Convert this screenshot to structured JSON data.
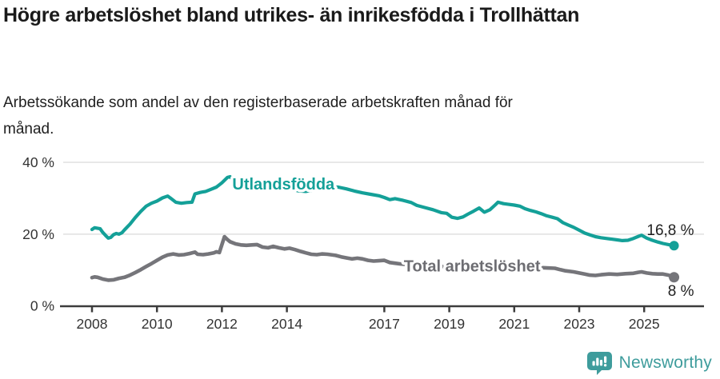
{
  "header": {
    "title": "Högre arbetslöshet bland utrikes- än inrikesfödda i Trollhättan",
    "subtitle": "Arbetssökande som andel av den registerbaserade arbetskraften månad för månad."
  },
  "footer": {
    "brand": "Newsworthy",
    "logo_color": "#3e9c9c"
  },
  "chart_data": {
    "type": "line",
    "unit": "%",
    "grid": "horizontal-only",
    "legend_position": "inline-labels-on-lines",
    "ylim": [
      0,
      42
    ],
    "x_range": [
      2008,
      2025.92
    ],
    "y_ticks": [
      {
        "value": 0,
        "label": "0 %"
      },
      {
        "value": 20,
        "label": "20 %"
      },
      {
        "value": 40,
        "label": "40 %"
      }
    ],
    "x_ticks": [
      {
        "year": 2008,
        "label": "2008"
      },
      {
        "year": 2010,
        "label": "2010"
      },
      {
        "year": 2012,
        "label": "2012"
      },
      {
        "year": 2014,
        "label": "2014"
      },
      {
        "year": 2017,
        "label": "2017"
      },
      {
        "year": 2019,
        "label": "2019"
      },
      {
        "year": 2021,
        "label": "2021"
      },
      {
        "year": 2023,
        "label": "2023"
      },
      {
        "year": 2025,
        "label": "2025"
      }
    ],
    "colors": {
      "axis": "#3c3c3c",
      "grid": "#e1e1e1",
      "tick_text": "#333333",
      "end_label_text": "#1f1f1f"
    },
    "series": [
      {
        "name": "Utlandsfödda",
        "color": "#14a098",
        "line_width": 4.2,
        "end_label": "16,8 %",
        "end_value": 16.8,
        "label_anchor": {
          "t": 2012.32,
          "v": 32.4
        },
        "points": [
          [
            2008.0,
            21.3
          ],
          [
            2008.08,
            21.8
          ],
          [
            2008.25,
            21.5
          ],
          [
            2008.33,
            20.5
          ],
          [
            2008.42,
            19.6
          ],
          [
            2008.5,
            18.9
          ],
          [
            2008.58,
            19.1
          ],
          [
            2008.67,
            19.9
          ],
          [
            2008.75,
            20.2
          ],
          [
            2008.83,
            20.0
          ],
          [
            2008.92,
            20.4
          ],
          [
            2009.0,
            21.2
          ],
          [
            2009.17,
            22.8
          ],
          [
            2009.33,
            24.6
          ],
          [
            2009.5,
            26.3
          ],
          [
            2009.67,
            27.8
          ],
          [
            2009.83,
            28.6
          ],
          [
            2010.0,
            29.2
          ],
          [
            2010.17,
            30.1
          ],
          [
            2010.33,
            30.6
          ],
          [
            2010.42,
            30.0
          ],
          [
            2010.58,
            28.9
          ],
          [
            2010.75,
            28.6
          ],
          [
            2010.92,
            28.8
          ],
          [
            2011.08,
            28.9
          ],
          [
            2011.17,
            31.2
          ],
          [
            2011.33,
            31.6
          ],
          [
            2011.5,
            31.9
          ],
          [
            2011.67,
            32.5
          ],
          [
            2011.83,
            33.1
          ],
          [
            2012.0,
            34.3
          ],
          [
            2012.17,
            35.8
          ],
          [
            2012.25,
            36.0
          ],
          [
            2012.33,
            35.3
          ],
          [
            2012.58,
            34.9
          ],
          [
            2012.83,
            34.4
          ],
          [
            2013.08,
            34.1
          ],
          [
            2013.33,
            33.7
          ],
          [
            2013.58,
            33.4
          ],
          [
            2013.83,
            33.1
          ],
          [
            2014.08,
            32.7
          ],
          [
            2014.33,
            32.1
          ],
          [
            2014.58,
            31.9
          ],
          [
            2014.83,
            32.3
          ],
          [
            2015.08,
            32.7
          ],
          [
            2015.33,
            33.0
          ],
          [
            2015.58,
            33.1
          ],
          [
            2015.83,
            32.6
          ],
          [
            2016.08,
            32.0
          ],
          [
            2016.33,
            31.5
          ],
          [
            2016.58,
            31.1
          ],
          [
            2016.83,
            30.7
          ],
          [
            2017.0,
            30.2
          ],
          [
            2017.17,
            29.6
          ],
          [
            2017.33,
            29.9
          ],
          [
            2017.58,
            29.4
          ],
          [
            2017.83,
            28.8
          ],
          [
            2018.0,
            28.0
          ],
          [
            2018.25,
            27.4
          ],
          [
            2018.5,
            26.8
          ],
          [
            2018.75,
            26.0
          ],
          [
            2018.92,
            25.8
          ],
          [
            2019.08,
            24.7
          ],
          [
            2019.25,
            24.4
          ],
          [
            2019.42,
            24.8
          ],
          [
            2019.58,
            25.6
          ],
          [
            2019.75,
            26.4
          ],
          [
            2019.92,
            27.3
          ],
          [
            2020.08,
            26.1
          ],
          [
            2020.25,
            26.8
          ],
          [
            2020.42,
            28.2
          ],
          [
            2020.5,
            28.9
          ],
          [
            2020.67,
            28.5
          ],
          [
            2020.83,
            28.3
          ],
          [
            2021.0,
            28.1
          ],
          [
            2021.17,
            27.8
          ],
          [
            2021.33,
            27.1
          ],
          [
            2021.5,
            26.6
          ],
          [
            2021.67,
            26.2
          ],
          [
            2021.83,
            25.7
          ],
          [
            2022.0,
            25.1
          ],
          [
            2022.17,
            24.7
          ],
          [
            2022.33,
            24.3
          ],
          [
            2022.5,
            23.2
          ],
          [
            2022.67,
            22.5
          ],
          [
            2022.83,
            21.9
          ],
          [
            2023.0,
            21.1
          ],
          [
            2023.17,
            20.3
          ],
          [
            2023.33,
            19.8
          ],
          [
            2023.5,
            19.3
          ],
          [
            2023.67,
            19.0
          ],
          [
            2023.83,
            18.8
          ],
          [
            2024.0,
            18.6
          ],
          [
            2024.17,
            18.4
          ],
          [
            2024.33,
            18.2
          ],
          [
            2024.5,
            18.3
          ],
          [
            2024.67,
            18.8
          ],
          [
            2024.83,
            19.4
          ],
          [
            2024.92,
            19.7
          ],
          [
            2025.08,
            18.9
          ],
          [
            2025.25,
            18.3
          ],
          [
            2025.42,
            17.8
          ],
          [
            2025.58,
            17.4
          ],
          [
            2025.75,
            17.1
          ],
          [
            2025.92,
            16.8
          ]
        ]
      },
      {
        "name": "Total arbetslöshet",
        "color": "#75757a",
        "label_color": "#6d6d72",
        "line_width": 4.6,
        "end_label": "8 %",
        "end_value": 8.0,
        "label_anchor": {
          "t": 2017.6,
          "v": 9.6
        },
        "points": [
          [
            2008.0,
            7.9
          ],
          [
            2008.08,
            8.1
          ],
          [
            2008.17,
            8.0
          ],
          [
            2008.33,
            7.5
          ],
          [
            2008.5,
            7.2
          ],
          [
            2008.67,
            7.3
          ],
          [
            2008.83,
            7.7
          ],
          [
            2009.0,
            8.0
          ],
          [
            2009.17,
            8.6
          ],
          [
            2009.33,
            9.3
          ],
          [
            2009.5,
            10.1
          ],
          [
            2009.67,
            11.0
          ],
          [
            2009.83,
            11.8
          ],
          [
            2010.0,
            12.7
          ],
          [
            2010.17,
            13.6
          ],
          [
            2010.33,
            14.2
          ],
          [
            2010.5,
            14.5
          ],
          [
            2010.67,
            14.2
          ],
          [
            2010.83,
            14.3
          ],
          [
            2011.0,
            14.6
          ],
          [
            2011.17,
            15.0
          ],
          [
            2011.25,
            14.4
          ],
          [
            2011.42,
            14.3
          ],
          [
            2011.58,
            14.5
          ],
          [
            2011.75,
            14.8
          ],
          [
            2011.83,
            15.1
          ],
          [
            2011.92,
            14.9
          ],
          [
            2012.08,
            19.3
          ],
          [
            2012.17,
            18.5
          ],
          [
            2012.25,
            17.9
          ],
          [
            2012.42,
            17.3
          ],
          [
            2012.58,
            17.0
          ],
          [
            2012.75,
            16.9
          ],
          [
            2012.92,
            17.0
          ],
          [
            2013.08,
            17.1
          ],
          [
            2013.25,
            16.4
          ],
          [
            2013.42,
            16.2
          ],
          [
            2013.58,
            16.6
          ],
          [
            2013.75,
            16.2
          ],
          [
            2013.92,
            15.9
          ],
          [
            2014.08,
            16.1
          ],
          [
            2014.25,
            15.7
          ],
          [
            2014.42,
            15.2
          ],
          [
            2014.58,
            14.8
          ],
          [
            2014.75,
            14.4
          ],
          [
            2014.92,
            14.3
          ],
          [
            2015.08,
            14.5
          ],
          [
            2015.25,
            14.4
          ],
          [
            2015.5,
            14.1
          ],
          [
            2015.67,
            13.7
          ],
          [
            2015.83,
            13.4
          ],
          [
            2016.0,
            13.1
          ],
          [
            2016.17,
            13.3
          ],
          [
            2016.33,
            13.1
          ],
          [
            2016.5,
            12.7
          ],
          [
            2016.67,
            12.5
          ],
          [
            2016.83,
            12.6
          ],
          [
            2017.0,
            12.7
          ],
          [
            2017.17,
            12.1
          ],
          [
            2017.33,
            11.9
          ],
          [
            2017.5,
            11.7
          ],
          [
            2017.75,
            11.5
          ],
          [
            2018.0,
            11.3
          ],
          [
            2018.5,
            11.1
          ],
          [
            2019.0,
            10.9
          ],
          [
            2019.5,
            10.8
          ],
          [
            2020.0,
            11.1
          ],
          [
            2020.5,
            11.3
          ],
          [
            2021.0,
            11.1
          ],
          [
            2021.5,
            10.8
          ],
          [
            2022.0,
            10.6
          ],
          [
            2022.25,
            10.5
          ],
          [
            2022.42,
            10.1
          ],
          [
            2022.58,
            9.8
          ],
          [
            2022.83,
            9.5
          ],
          [
            2023.0,
            9.2
          ],
          [
            2023.17,
            8.9
          ],
          [
            2023.33,
            8.6
          ],
          [
            2023.5,
            8.5
          ],
          [
            2023.67,
            8.7
          ],
          [
            2023.92,
            8.9
          ],
          [
            2024.17,
            8.8
          ],
          [
            2024.42,
            9.0
          ],
          [
            2024.67,
            9.1
          ],
          [
            2024.83,
            9.4
          ],
          [
            2024.92,
            9.5
          ],
          [
            2025.08,
            9.2
          ],
          [
            2025.25,
            9.0
          ],
          [
            2025.42,
            8.9
          ],
          [
            2025.58,
            8.9
          ],
          [
            2025.75,
            8.6
          ],
          [
            2025.92,
            8.0
          ]
        ]
      }
    ]
  }
}
